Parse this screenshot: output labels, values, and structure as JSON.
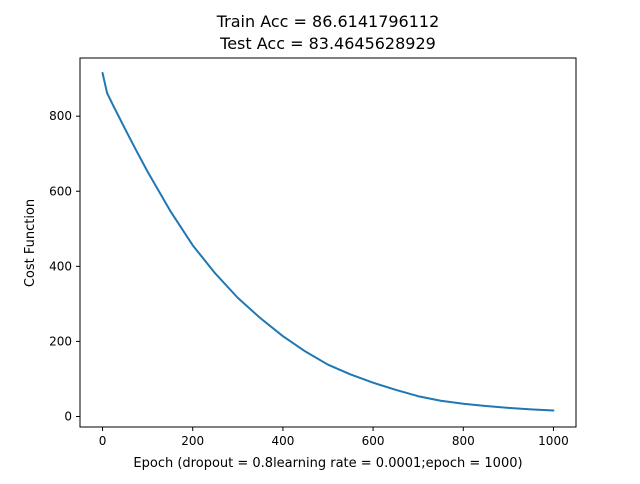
{
  "chart_data": {
    "type": "line",
    "title_lines": [
      "Train Acc = 86.6141796112",
      "Test Acc = 83.4645628929"
    ],
    "xlabel": "Epoch (dropout = 0.8learning rate = 0.0001;epoch = 1000)",
    "ylabel": "Cost Function",
    "xlim": [
      -50,
      1050
    ],
    "ylim": [
      -28,
      955
    ],
    "xticks": [
      0,
      200,
      400,
      600,
      800,
      1000
    ],
    "yticks": [
      0,
      200,
      400,
      600,
      800
    ],
    "grid": false,
    "series": [
      {
        "color": "#1f77b4",
        "x": [
          0,
          10,
          25,
          50,
          75,
          100,
          150,
          200,
          250,
          300,
          350,
          400,
          450,
          500,
          550,
          600,
          650,
          700,
          750,
          800,
          850,
          900,
          950,
          1000
        ],
        "y": [
          915,
          862,
          825,
          766,
          708,
          652,
          548,
          456,
          381,
          316,
          262,
          214,
          173,
          138,
          112,
          90,
          71,
          54,
          42,
          34,
          28,
          23,
          19,
          16
        ]
      }
    ]
  }
}
